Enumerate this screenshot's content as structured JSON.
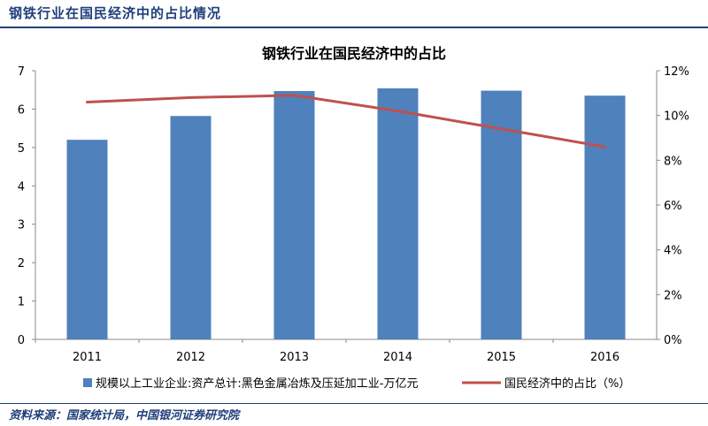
{
  "header": {
    "title": "钢铁行业在国民经济中的占比情况"
  },
  "footer": {
    "source": "资料来源：国家统计局，中国银河证券研究院"
  },
  "colors": {
    "bar": "#4f81bd",
    "line": "#c0504d",
    "accent": "#1f3f7a"
  },
  "chart_data": {
    "type": "bar",
    "title": "钢铁行业在国民经济中的占比",
    "categories": [
      "2011",
      "2012",
      "2013",
      "2014",
      "2015",
      "2016"
    ],
    "series": [
      {
        "name": "规模以上工业企业:资产总计:黑色金属冶炼及压延加工业-万亿元",
        "type": "bar",
        "axis": "left",
        "values": [
          5.2,
          5.82,
          6.47,
          6.54,
          6.48,
          6.35
        ]
      },
      {
        "name": "国民经济中的占比（%）",
        "type": "line",
        "axis": "right",
        "values": [
          10.6,
          10.8,
          10.9,
          10.2,
          9.4,
          8.6
        ]
      }
    ],
    "y_left": {
      "min": 0,
      "max": 7,
      "ticks": [
        "0",
        "1",
        "2",
        "3",
        "4",
        "5",
        "6",
        "7"
      ]
    },
    "y_right": {
      "min": 0,
      "max": 12,
      "ticks": [
        "0%",
        "2%",
        "4%",
        "6%",
        "8%",
        "10%",
        "12%"
      ]
    },
    "legend_position": "bottom",
    "grid": false
  }
}
